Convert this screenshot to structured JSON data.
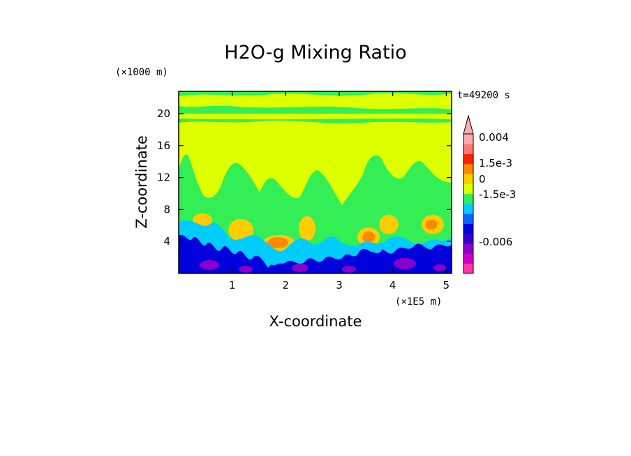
{
  "chart_data": {
    "type": "heatmap",
    "title": "H2O-g Mixing Ratio",
    "xlabel": "X-coordinate",
    "ylabel": "Z-coordinate",
    "x_unit": "(×1E5 m)",
    "y_unit": "(×1000 m)",
    "time_label": "t=49200 s",
    "xlim": [
      0,
      5.1
    ],
    "ylim": [
      0,
      22.8
    ],
    "x_ticks": [
      "1",
      "2",
      "3",
      "4",
      "5"
    ],
    "y_ticks": [
      "4",
      "8",
      "12",
      "16",
      "20"
    ],
    "colorbar": {
      "labels": [
        "0.004",
        "1.5e-3",
        "0",
        "-1.5e-3",
        "-0.006"
      ],
      "colors": [
        "#ff33aa",
        "#cc00cc",
        "#8800cc",
        "#3300cc",
        "#0000dd",
        "#0066ff",
        "#00ccff",
        "#33ee55",
        "#ddff00",
        "#ffcc00",
        "#ff8800",
        "#ff2200",
        "#ff7777",
        "#ffaaaa"
      ]
    }
  }
}
